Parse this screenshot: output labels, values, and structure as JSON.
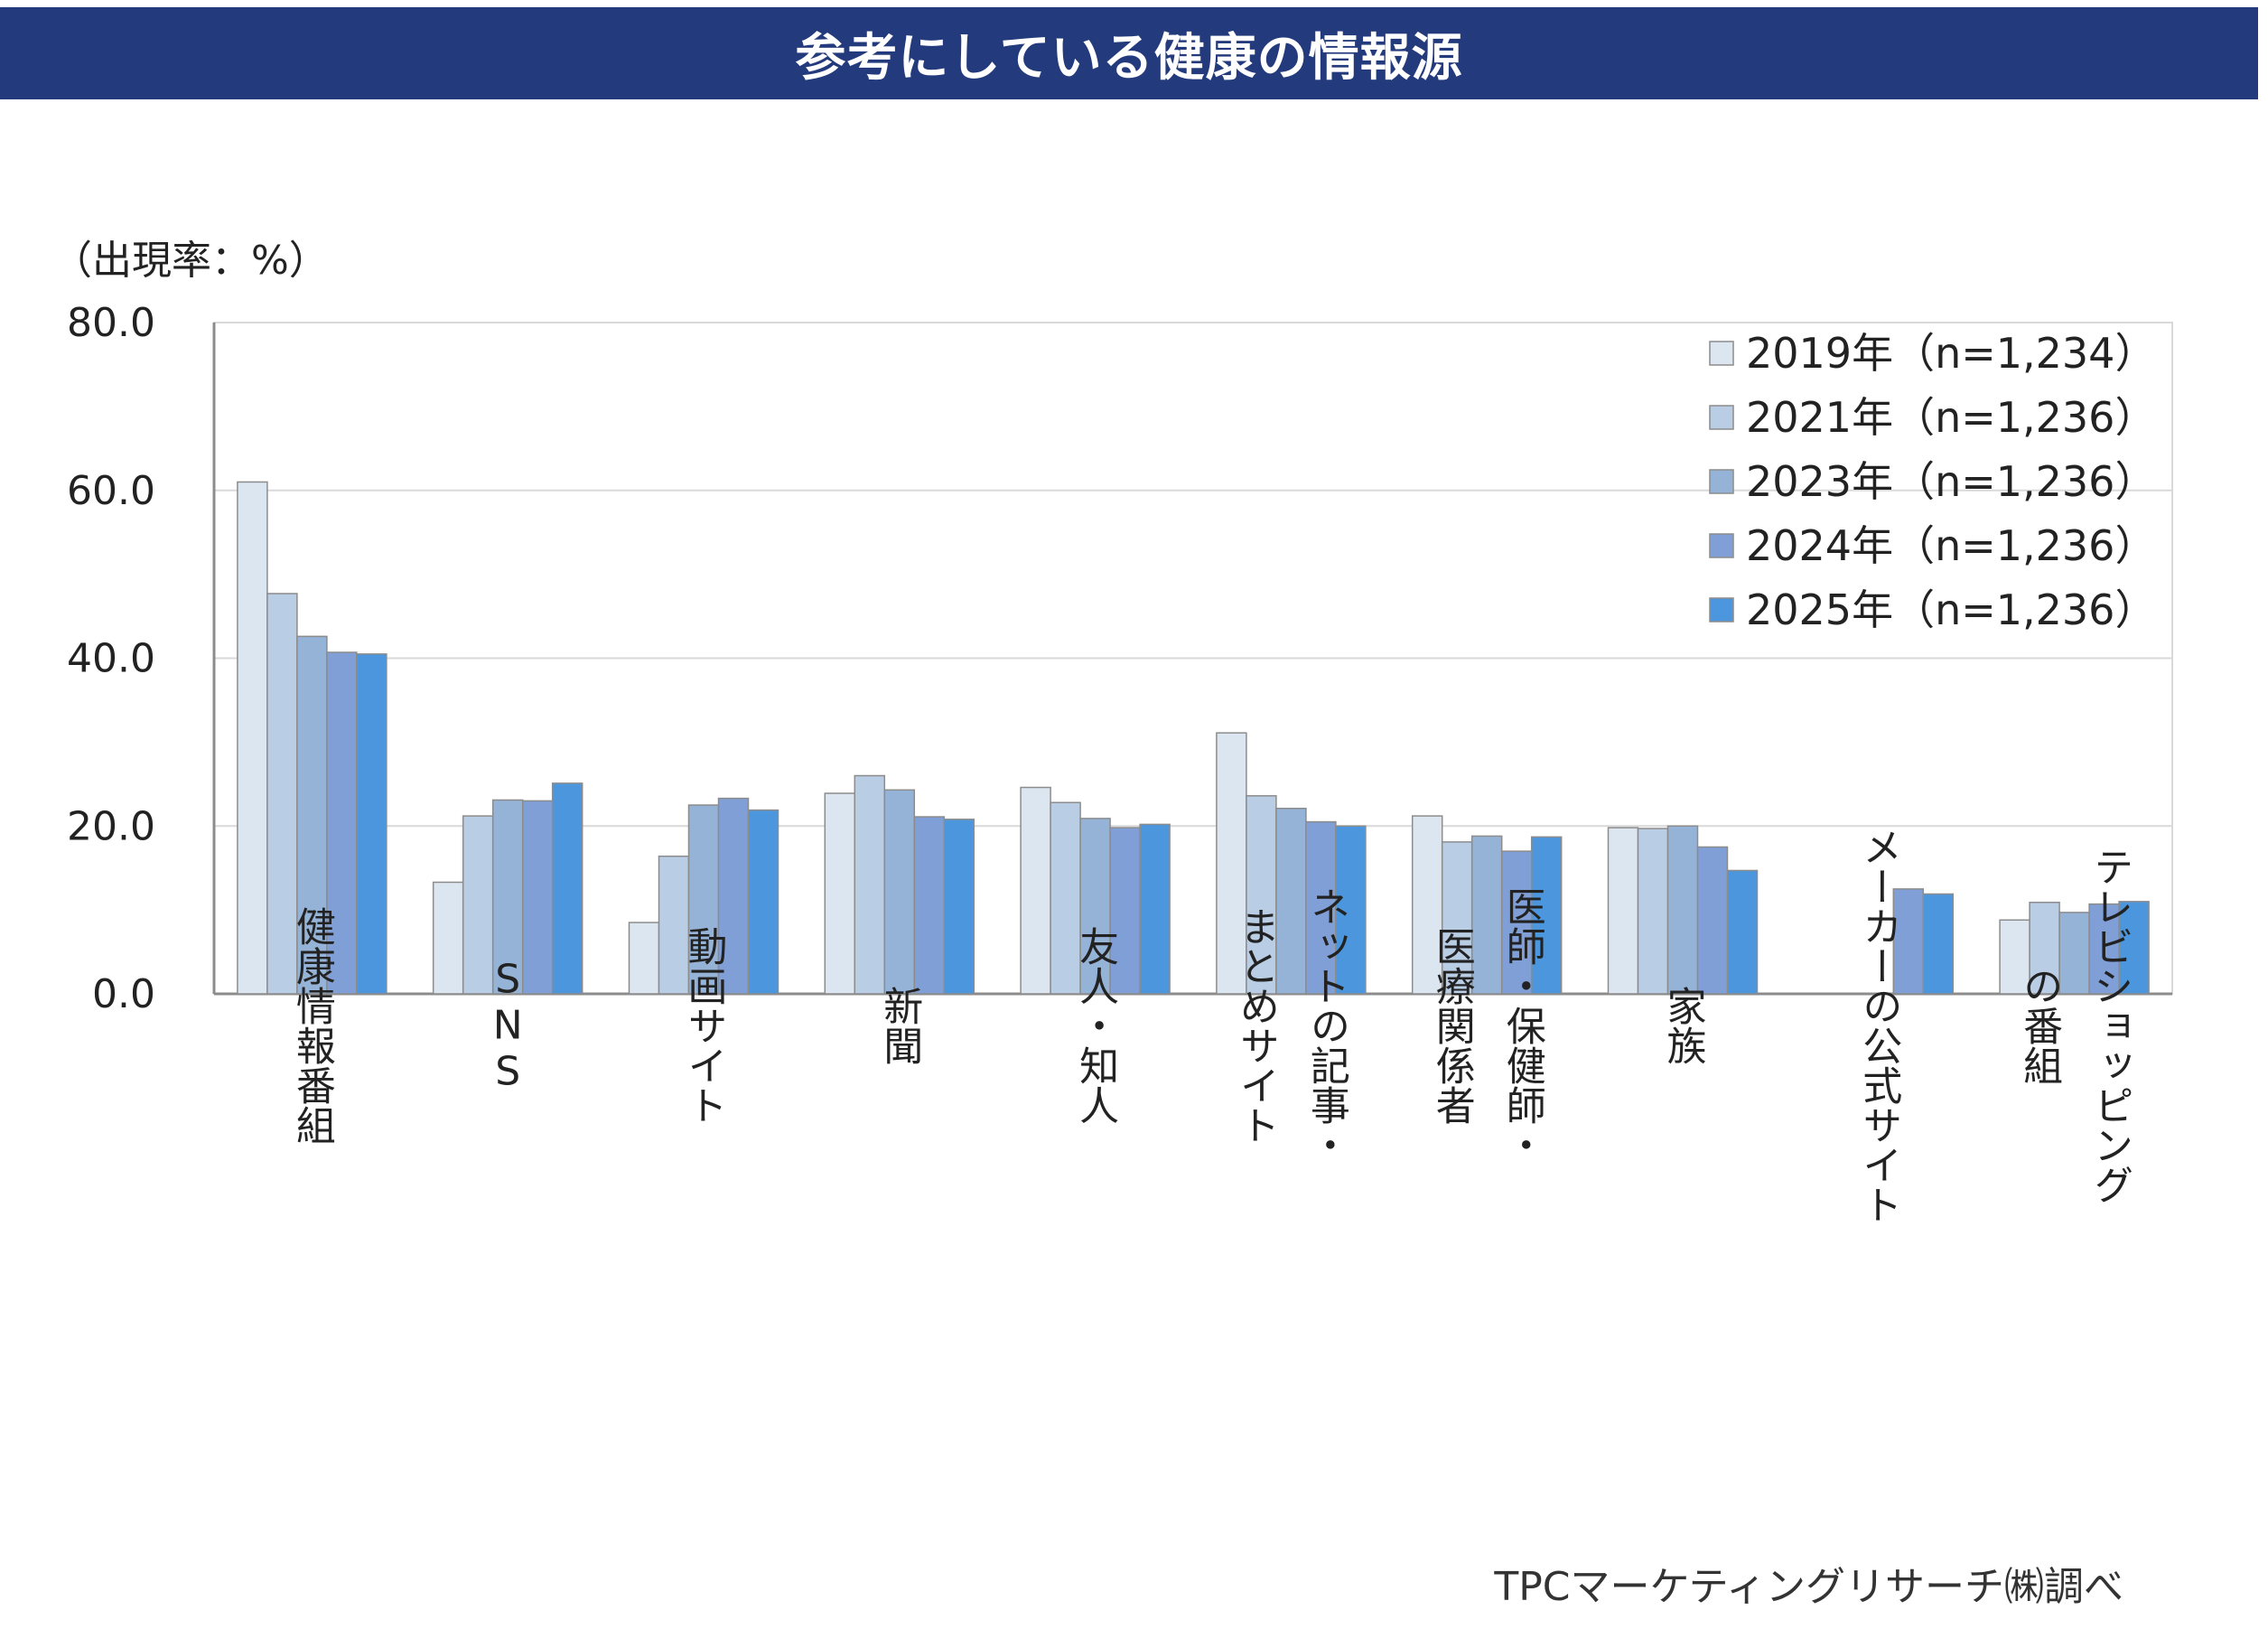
{
  "header": {
    "title": "参考にしている健康の情報源"
  },
  "chart_data": {
    "type": "bar",
    "title": "参考にしている健康の情報源",
    "ylabel": "（出現率：%）",
    "ylim": [
      0,
      80
    ],
    "yticks": [
      "80.0",
      "60.0",
      "40.0",
      "20.0",
      "0.0"
    ],
    "grid": true,
    "legend_position": "top-right",
    "categories": [
      [
        "健康情報番組"
      ],
      [
        "SNS"
      ],
      [
        "動画サイト"
      ],
      [
        "新聞"
      ],
      [
        "友人・知人"
      ],
      [
        "ネットの記事・",
        "まとめサイト"
      ],
      [
        "医師・保健師・",
        "医療関係者"
      ],
      [
        "家族"
      ],
      [
        "メーカーの公式サイト"
      ],
      [
        "テレビショッピング",
        "の番組"
      ]
    ],
    "series": [
      {
        "name": "2019年（n=1,234）",
        "color": "#dce6f1",
        "values": [
          61.0,
          13.3,
          8.5,
          23.9,
          24.6,
          31.1,
          21.2,
          19.8,
          null,
          8.8
        ]
      },
      {
        "name": "2021年（n=1,236）",
        "color": "#b9cde5",
        "values": [
          47.7,
          21.2,
          16.4,
          26.0,
          22.8,
          23.6,
          18.1,
          19.7,
          null,
          10.9
        ]
      },
      {
        "name": "2023年（n=1,236）",
        "color": "#95b3d7",
        "values": [
          42.6,
          23.1,
          22.5,
          24.3,
          20.9,
          22.1,
          18.8,
          20.0,
          null,
          9.7
        ]
      },
      {
        "name": "2024年（n=1,236）",
        "color": "#7f9fd6",
        "values": [
          40.7,
          23.0,
          23.3,
          21.1,
          19.8,
          20.5,
          17.0,
          17.5,
          12.5,
          10.7
        ]
      },
      {
        "name": "2025年（n=1,236）",
        "color": "#4b96dd",
        "values": [
          40.5,
          25.1,
          21.9,
          20.8,
          20.2,
          20.0,
          18.7,
          14.7,
          11.9,
          11.0
        ]
      }
    ]
  },
  "footer": {
    "source": "TPCマーケティングリサーチ㈱調べ"
  }
}
